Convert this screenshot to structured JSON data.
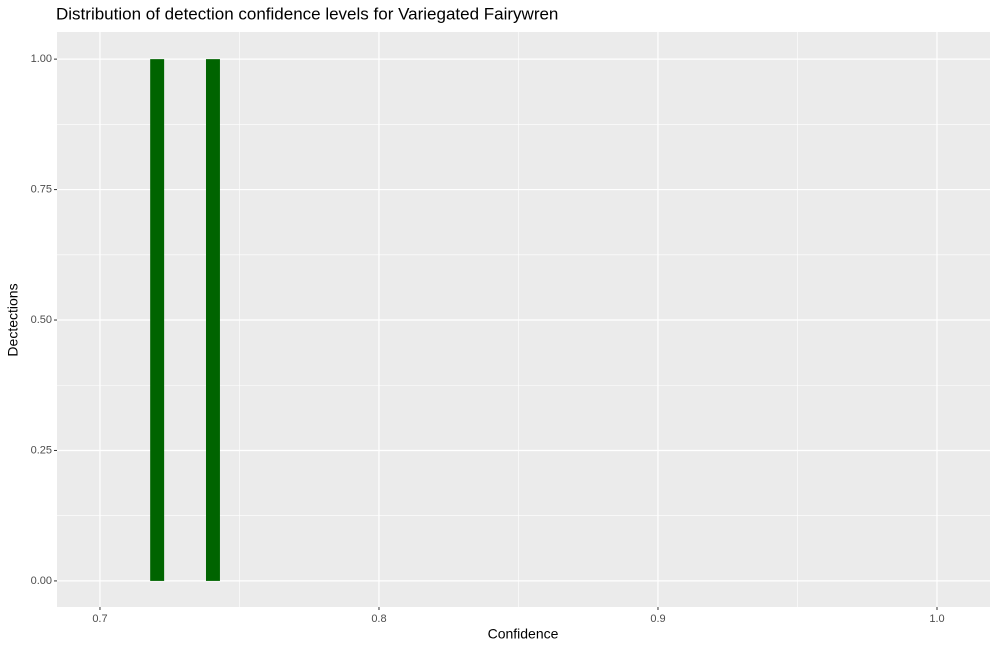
{
  "chart_data": {
    "type": "histogram",
    "title": "Distribution of detection confidence levels for Variegated Fairywren",
    "x_label": "Confidence",
    "y_label": "Dectections",
    "bins": [
      0.718,
      0.723,
      0.728,
      0.733,
      0.738,
      0.743
    ],
    "values": [
      1,
      0,
      0,
      0,
      1
    ],
    "color": "#006400",
    "xlim": [
      0.6846,
      1.019
    ],
    "ylim": [
      -0.05,
      1.052
    ],
    "xticks": [
      0.7,
      0.8,
      0.9,
      {
        "value": 1.0,
        "label": "1.0"
      }
    ],
    "yticks": [
      {
        "value": 0,
        "label": "0.00"
      },
      {
        "value": 0.25,
        "label": "0.25"
      },
      {
        "value": 0.5,
        "label": "0.50"
      },
      {
        "value": 0.75,
        "label": "0.75"
      },
      {
        "value": 1,
        "label": "1.00"
      }
    ],
    "grid": true
  }
}
